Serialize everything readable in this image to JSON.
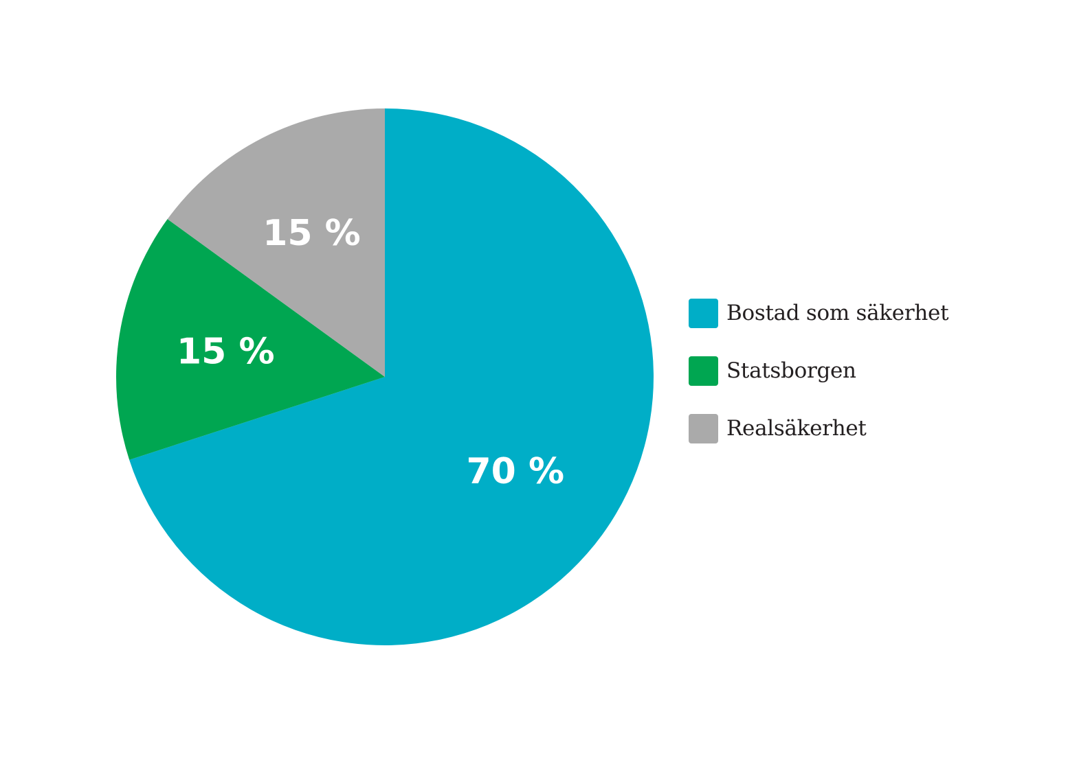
{
  "chart_data": {
    "type": "pie",
    "start_angle_deg": 0,
    "direction": "clockwise",
    "slices": [
      {
        "label": "Bostad som säkerhet",
        "value": 70,
        "value_label": "70 %",
        "color": "#00aec7"
      },
      {
        "label": "Statsborgen",
        "value": 15,
        "value_label": "15 %",
        "color": "#00a651"
      },
      {
        "label": "Realsäkerhet",
        "value": 15,
        "value_label": "15 %",
        "color": "#aaaaaa"
      }
    ],
    "legend_position": "right"
  }
}
